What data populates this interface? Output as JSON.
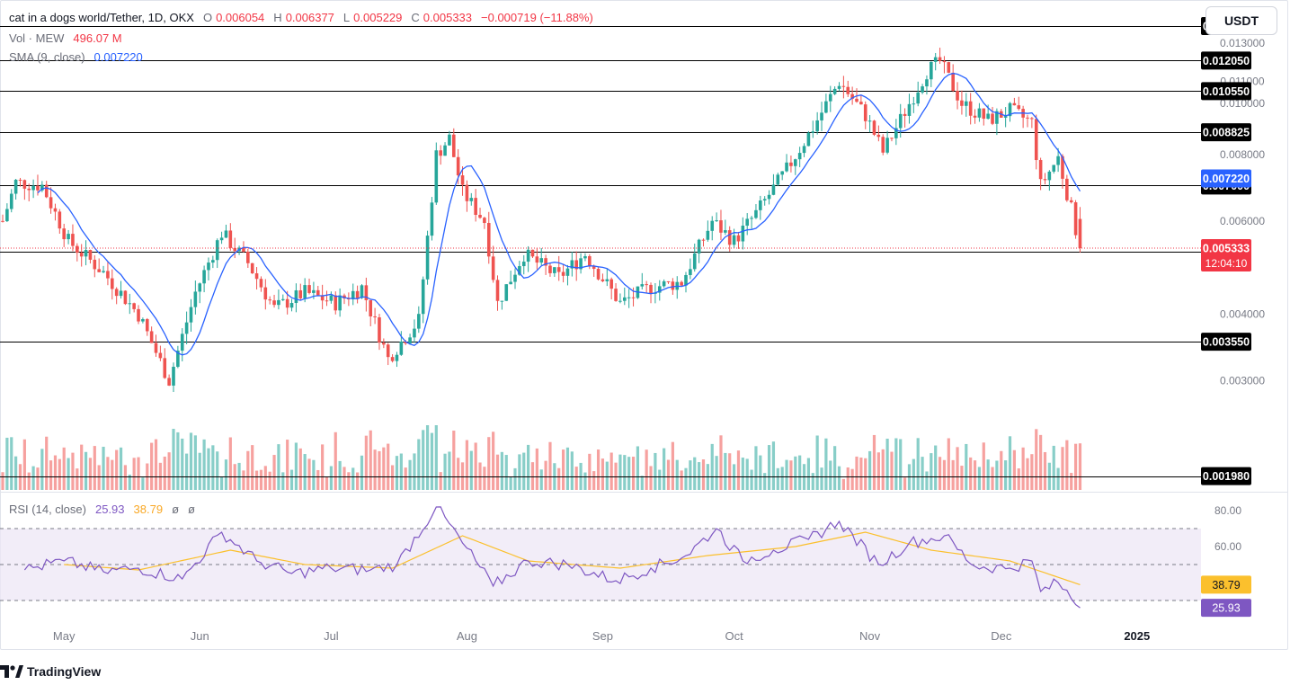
{
  "header": {
    "symbol": "cat in a dogs world/Tether, 1D, OKX",
    "ohlc": {
      "o_label": "O",
      "o": "0.006054",
      "h_label": "H",
      "h": "0.006377",
      "l_label": "L",
      "l": "0.005229",
      "c_label": "C",
      "c": "0.005333",
      "change": "−0.000719 (−11.88%)"
    },
    "volume": {
      "label": "Vol · MEW",
      "value": "496.07 M"
    },
    "sma": {
      "label": "SMA (9, close)",
      "value": "0.007220"
    },
    "rsi": {
      "label": "RSI (14, close)",
      "value": "25.93",
      "ma_value": "38.79",
      "extra1": "ø",
      "extra2": "ø"
    }
  },
  "currency_button": "USDT",
  "branding": {
    "logo_text": "TradingView",
    "logo_icon": "tradingview-logo-icon"
  },
  "colors": {
    "bull": "#26a69a",
    "bear": "#ef5350",
    "sma": "#2962ff",
    "rsi_line": "#7e57c2",
    "rsi_ma": "#fbc02d",
    "rsi_band": "#ede7f6",
    "level_line": "#000000",
    "price_line": "#f23645"
  },
  "chart_data": [
    {
      "type": "candlestick",
      "title": "cat in a dogs world/Tether, 1D, OKX",
      "y_scale": "log",
      "ylim": [
        0.00185,
        0.0145
      ],
      "xlim": [
        "2024-04-17",
        "2025-01-15"
      ],
      "x_tick_labels": [
        {
          "label": "May",
          "date": "2024-05-01"
        },
        {
          "label": "Jun",
          "date": "2024-06-01"
        },
        {
          "label": "Jul",
          "date": "2024-07-01"
        },
        {
          "label": "Aug",
          "date": "2024-08-01"
        },
        {
          "label": "Sep",
          "date": "2024-09-01"
        },
        {
          "label": "Oct",
          "date": "2024-10-01"
        },
        {
          "label": "Nov",
          "date": "2024-11-01"
        },
        {
          "label": "Dec",
          "date": "2024-12-01"
        },
        {
          "label": "2025",
          "date": "2025-01-01"
        }
      ],
      "y_tick_labels": [
        "0.013000",
        "0.011000",
        "0.010000",
        "0.008000",
        "0.006000",
        "0.004000",
        "0.003000"
      ],
      "horizontal_levels": [
        "0.014000",
        "0.012050",
        "0.010550",
        "0.008825",
        "0.007000",
        "0.005250",
        "0.003550",
        "0.001980"
      ],
      "sma_badge": "0.007220",
      "last_price": "0.005333",
      "countdown": "12:04:10",
      "key_points": [
        {
          "date": "2024-04-17",
          "close": 0.006
        },
        {
          "date": "2024-04-20",
          "close": 0.0071
        },
        {
          "date": "2024-04-26",
          "close": 0.007
        },
        {
          "date": "2024-05-02",
          "close": 0.0055
        },
        {
          "date": "2024-05-10",
          "close": 0.0048
        },
        {
          "date": "2024-05-18",
          "close": 0.004
        },
        {
          "date": "2024-05-25",
          "close": 0.003
        },
        {
          "date": "2024-05-31",
          "close": 0.0044
        },
        {
          "date": "2024-06-06",
          "close": 0.0057
        },
        {
          "date": "2024-06-12",
          "close": 0.005
        },
        {
          "date": "2024-06-18",
          "close": 0.0041
        },
        {
          "date": "2024-06-25",
          "close": 0.0044
        },
        {
          "date": "2024-07-02",
          "close": 0.0042
        },
        {
          "date": "2024-07-08",
          "close": 0.0045
        },
        {
          "date": "2024-07-14",
          "close": 0.0033
        },
        {
          "date": "2024-07-21",
          "close": 0.0039
        },
        {
          "date": "2024-07-25",
          "close": 0.008
        },
        {
          "date": "2024-07-28",
          "close": 0.0086
        },
        {
          "date": "2024-07-31",
          "close": 0.0068
        },
        {
          "date": "2024-08-05",
          "close": 0.006
        },
        {
          "date": "2024-08-08",
          "close": 0.0042
        },
        {
          "date": "2024-08-14",
          "close": 0.0052
        },
        {
          "date": "2024-08-22",
          "close": 0.0047
        },
        {
          "date": "2024-08-28",
          "close": 0.0052
        },
        {
          "date": "2024-09-05",
          "close": 0.0042
        },
        {
          "date": "2024-09-12",
          "close": 0.0045
        },
        {
          "date": "2024-09-19",
          "close": 0.0046
        },
        {
          "date": "2024-09-26",
          "close": 0.006
        },
        {
          "date": "2024-10-01",
          "close": 0.0055
        },
        {
          "date": "2024-10-06",
          "close": 0.0062
        },
        {
          "date": "2024-10-13",
          "close": 0.0075
        },
        {
          "date": "2024-10-19",
          "close": 0.009
        },
        {
          "date": "2024-10-25",
          "close": 0.011
        },
        {
          "date": "2024-10-31",
          "close": 0.0095
        },
        {
          "date": "2024-11-04",
          "close": 0.0081
        },
        {
          "date": "2024-11-10",
          "close": 0.01
        },
        {
          "date": "2024-11-14",
          "close": 0.0115
        },
        {
          "date": "2024-11-17",
          "close": 0.012
        },
        {
          "date": "2024-11-22",
          "close": 0.01
        },
        {
          "date": "2024-11-28",
          "close": 0.0093
        },
        {
          "date": "2024-12-03",
          "close": 0.0097
        },
        {
          "date": "2024-12-08",
          "close": 0.0092
        },
        {
          "date": "2024-12-10",
          "close": 0.007
        },
        {
          "date": "2024-12-14",
          "close": 0.0079
        },
        {
          "date": "2024-12-17",
          "close": 0.0063
        },
        {
          "date": "2024-12-19",
          "close": 0.005333
        }
      ],
      "volume_scale_max": 1.0
    },
    {
      "type": "line",
      "title": "RSI (14, close)",
      "ylim": [
        15,
        90
      ],
      "y_tick_labels": [
        "80.00",
        "60.00"
      ],
      "bands": [
        70,
        50,
        30
      ],
      "series": [
        {
          "name": "RSI",
          "last": 25.93,
          "points": [
            {
              "date": "2024-04-22",
              "value": 47
            },
            {
              "date": "2024-05-01",
              "value": 52
            },
            {
              "date": "2024-05-10",
              "value": 46
            },
            {
              "date": "2024-05-18",
              "value": 48
            },
            {
              "date": "2024-05-28",
              "value": 42
            },
            {
              "date": "2024-06-06",
              "value": 68
            },
            {
              "date": "2024-06-14",
              "value": 52
            },
            {
              "date": "2024-06-22",
              "value": 45
            },
            {
              "date": "2024-07-01",
              "value": 48
            },
            {
              "date": "2024-07-10",
              "value": 47
            },
            {
              "date": "2024-07-16",
              "value": 50
            },
            {
              "date": "2024-07-25",
              "value": 82
            },
            {
              "date": "2024-07-31",
              "value": 62
            },
            {
              "date": "2024-08-07",
              "value": 38
            },
            {
              "date": "2024-08-15",
              "value": 52
            },
            {
              "date": "2024-08-24",
              "value": 50
            },
            {
              "date": "2024-09-04",
              "value": 41
            },
            {
              "date": "2024-09-12",
              "value": 48
            },
            {
              "date": "2024-09-20",
              "value": 55
            },
            {
              "date": "2024-09-27",
              "value": 70
            },
            {
              "date": "2024-10-03",
              "value": 52
            },
            {
              "date": "2024-10-10",
              "value": 58
            },
            {
              "date": "2024-10-18",
              "value": 64
            },
            {
              "date": "2024-10-25",
              "value": 74
            },
            {
              "date": "2024-11-03",
              "value": 50
            },
            {
              "date": "2024-11-10",
              "value": 62
            },
            {
              "date": "2024-11-18",
              "value": 66
            },
            {
              "date": "2024-11-25",
              "value": 49
            },
            {
              "date": "2024-12-03",
              "value": 48
            },
            {
              "date": "2024-12-08",
              "value": 52
            },
            {
              "date": "2024-12-10",
              "value": 35
            },
            {
              "date": "2024-12-14",
              "value": 40
            },
            {
              "date": "2024-12-19",
              "value": 25.93
            }
          ]
        },
        {
          "name": "RSI MA",
          "last": 38.79,
          "points": [
            {
              "date": "2024-05-01",
              "value": 50
            },
            {
              "date": "2024-05-18",
              "value": 47
            },
            {
              "date": "2024-06-08",
              "value": 58
            },
            {
              "date": "2024-06-25",
              "value": 50
            },
            {
              "date": "2024-07-15",
              "value": 48
            },
            {
              "date": "2024-07-31",
              "value": 66
            },
            {
              "date": "2024-08-15",
              "value": 52
            },
            {
              "date": "2024-09-05",
              "value": 48
            },
            {
              "date": "2024-09-25",
              "value": 55
            },
            {
              "date": "2024-10-15",
              "value": 60
            },
            {
              "date": "2024-10-31",
              "value": 68
            },
            {
              "date": "2024-11-15",
              "value": 58
            },
            {
              "date": "2024-12-03",
              "value": 52
            },
            {
              "date": "2024-12-19",
              "value": 38.79
            }
          ]
        }
      ]
    }
  ]
}
